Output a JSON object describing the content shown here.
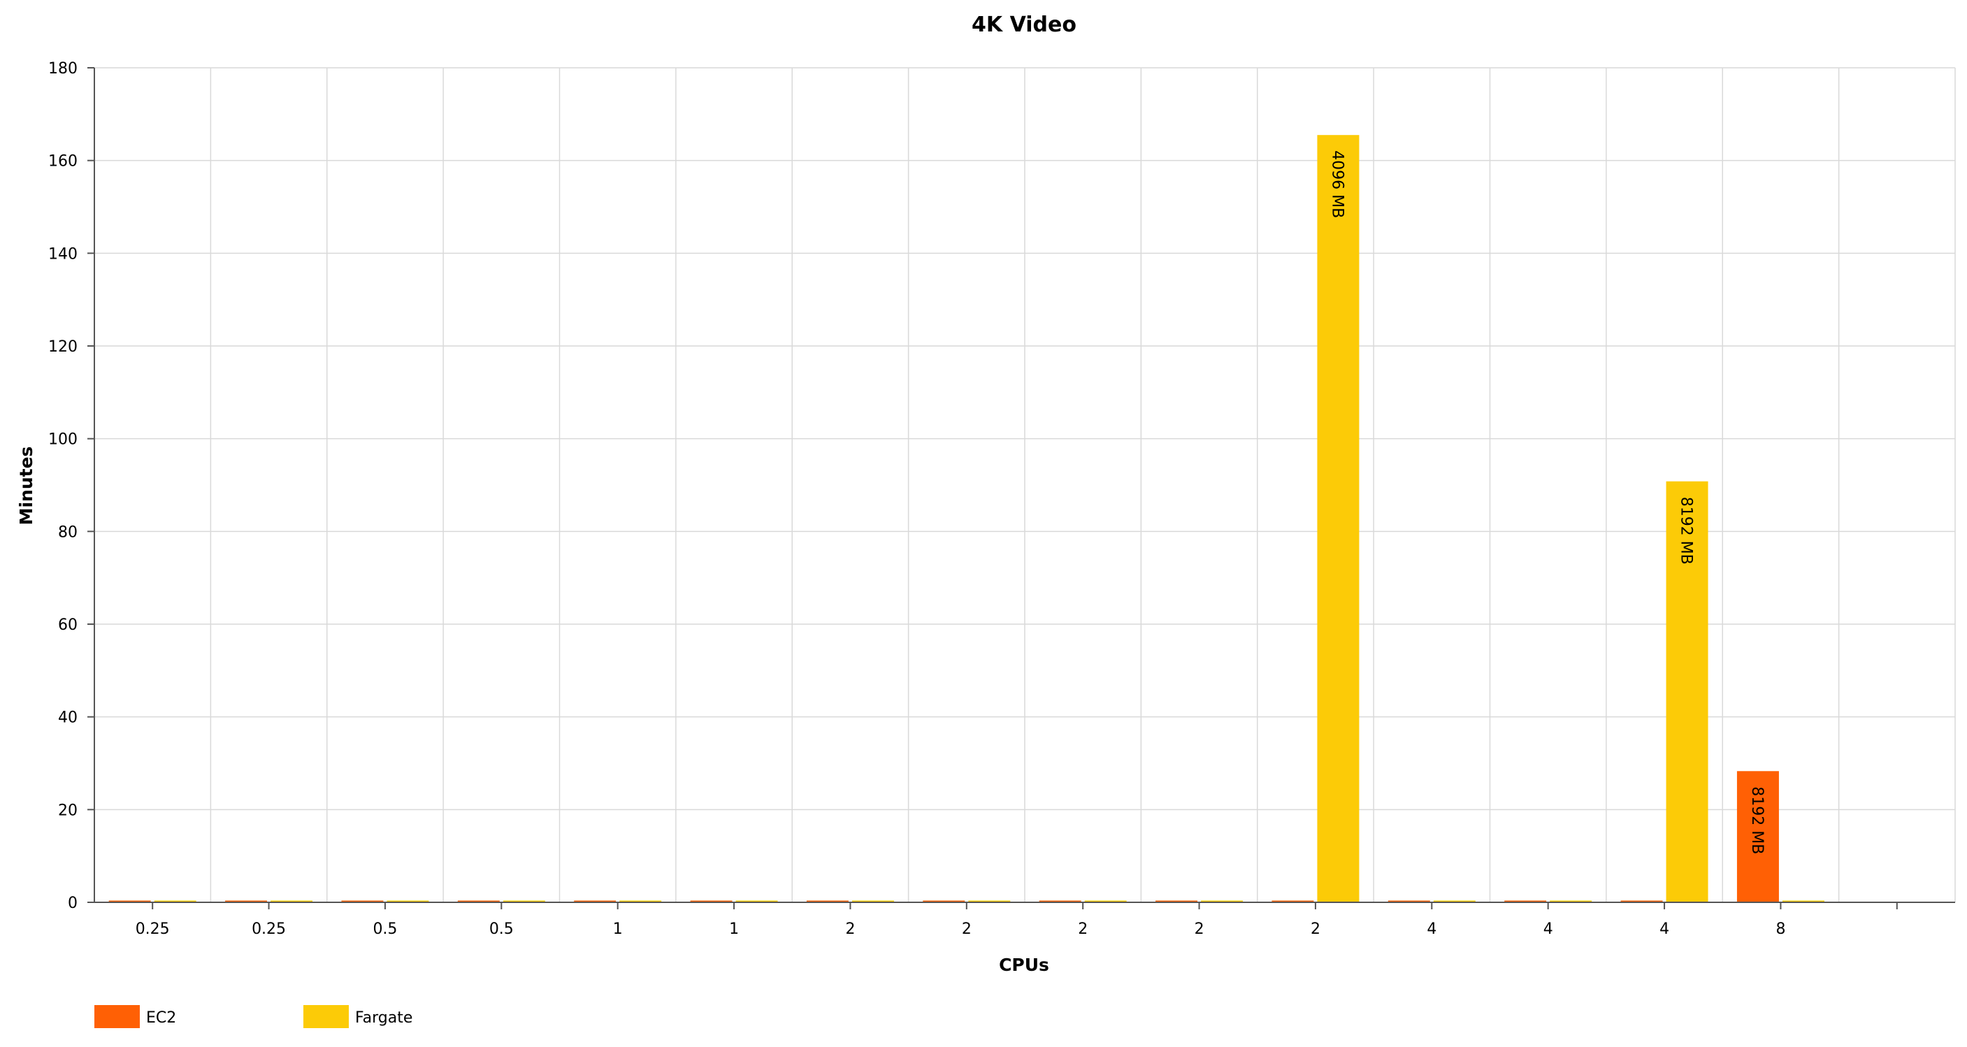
{
  "chart_data": {
    "type": "bar",
    "title": "4K Video",
    "xlabel": "CPUs",
    "ylabel": "Minutes",
    "ylim": [
      0,
      180
    ],
    "yticks": [
      0,
      20,
      40,
      60,
      80,
      100,
      120,
      140,
      160,
      180
    ],
    "grid": true,
    "legend_position": "bottom-left",
    "categories": [
      "0.25",
      "0.25",
      "0.5",
      "0.5",
      "1",
      "1",
      "2",
      "2",
      "2",
      "2",
      "2",
      "4",
      "4",
      "4",
      "8",
      ""
    ],
    "series": [
      {
        "name": "EC2",
        "color": "#ff6005",
        "values": [
          0,
          0,
          0,
          0,
          0,
          0,
          0,
          0,
          0,
          0,
          0,
          0,
          0,
          0,
          28.3,
          null
        ],
        "labels": [
          "",
          "",
          "",
          "",
          "",
          "",
          "",
          "",
          "",
          "",
          "",
          "",
          "",
          "",
          "8192 MB",
          ""
        ]
      },
      {
        "name": "Fargate",
        "color": "#fccb07",
        "values": [
          0,
          0,
          0,
          0,
          0,
          0,
          0,
          0,
          0,
          0,
          165.5,
          0,
          0,
          90.8,
          0,
          null
        ],
        "labels": [
          "",
          "",
          "",
          "",
          "",
          "",
          "",
          "",
          "",
          "",
          "4096 MB",
          "",
          "",
          "8192 MB",
          "",
          ""
        ]
      }
    ]
  }
}
